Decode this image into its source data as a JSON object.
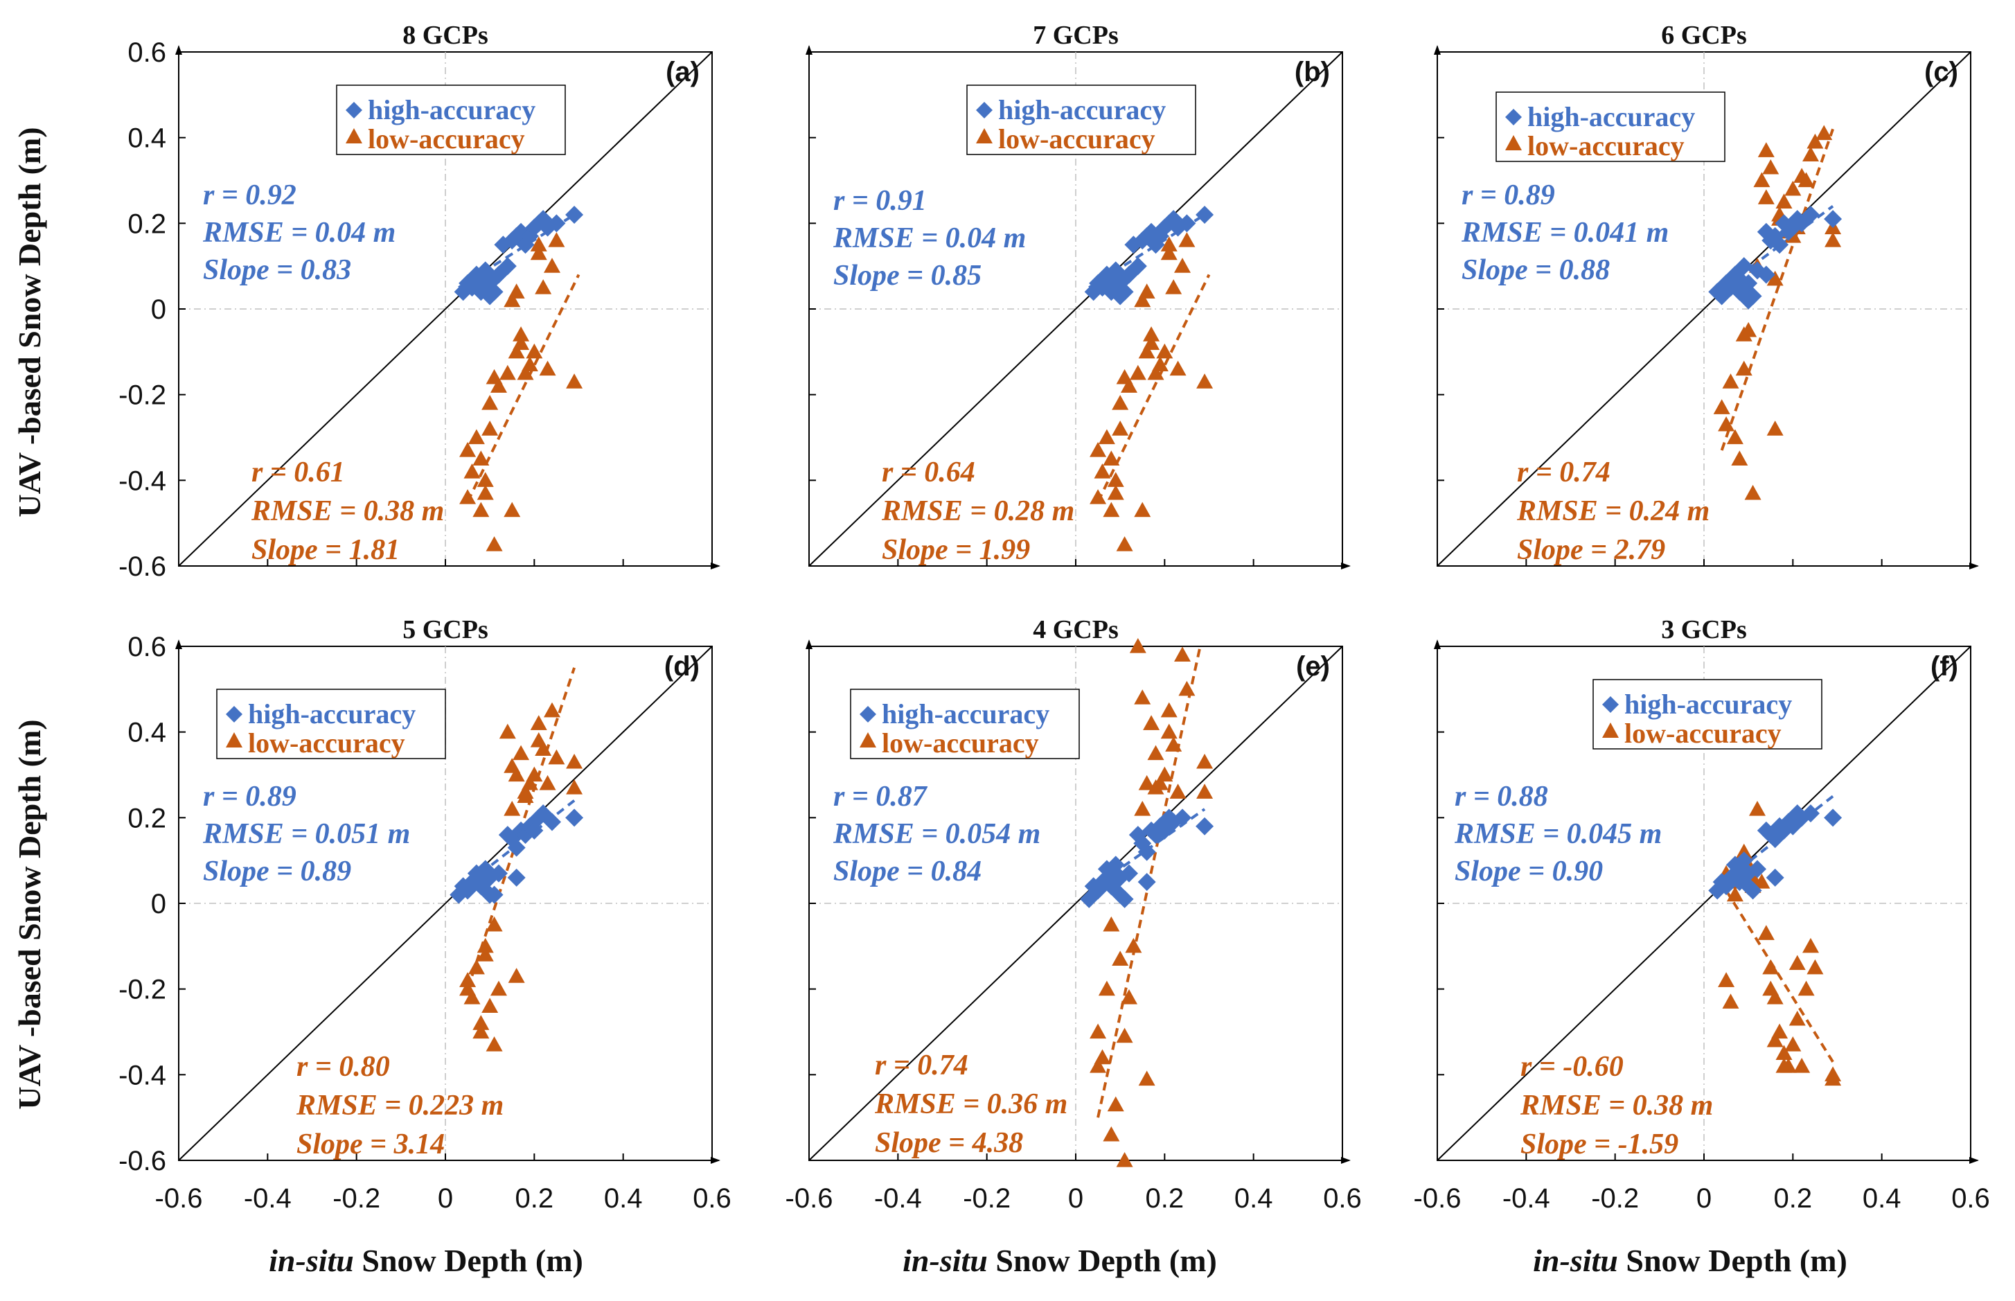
{
  "figure": {
    "ylabel": "UAV -based  Snow Depth (m)",
    "xlabel_italic": "in-situ",
    "xlabel_rest": " Snow Depth (m)",
    "legend": {
      "high": "high-accuracy",
      "low": "low-accuracy"
    },
    "colors": {
      "high": "#4472c4",
      "low": "#c55a11",
      "axis": "#000000",
      "grid": "#bfbfbf"
    },
    "ticks": [
      "-0.6",
      "-0.4",
      "-0.2",
      "0",
      "0.2",
      "0.4",
      "0.6"
    ]
  },
  "chart_data": [
    {
      "type": "scatter",
      "id": "a",
      "title": "8 GCPs",
      "panel_label": "(a)",
      "xlim": [
        -0.6,
        0.6
      ],
      "ylim": [
        -0.6,
        0.6
      ],
      "grid": "zero-lines dash-dot",
      "high": {
        "stats": [
          "r = 0.92",
          "RMSE = 0.04 m",
          "Slope = 0.83"
        ],
        "x": [
          0.04,
          0.05,
          0.06,
          0.07,
          0.08,
          0.09,
          0.1,
          0.11,
          0.12,
          0.14,
          0.15,
          0.16,
          0.17,
          0.18,
          0.19,
          0.2,
          0.21,
          0.22,
          0.23,
          0.25,
          0.29,
          0.1,
          0.08,
          0.13
        ],
        "y": [
          0.04,
          0.06,
          0.05,
          0.08,
          0.04,
          0.09,
          0.06,
          0.04,
          0.08,
          0.1,
          0.16,
          0.17,
          0.18,
          0.15,
          0.17,
          0.19,
          0.2,
          0.21,
          0.19,
          0.2,
          0.22,
          0.03,
          0.07,
          0.15
        ],
        "fit": [
          [
            0.03,
            0.05
          ],
          [
            0.29,
            0.22
          ]
        ]
      },
      "low": {
        "stats": [
          "r = 0.61",
          "RMSE = 0.38 m",
          "Slope = 1.81"
        ],
        "x": [
          0.05,
          0.06,
          0.05,
          0.07,
          0.08,
          0.09,
          0.1,
          0.11,
          0.12,
          0.14,
          0.15,
          0.16,
          0.17,
          0.18,
          0.19,
          0.2,
          0.21,
          0.22,
          0.24,
          0.25,
          0.16,
          0.11,
          0.08,
          0.1,
          0.29,
          0.23,
          0.17,
          0.21,
          0.15,
          0.09
        ],
        "y": [
          -0.44,
          -0.38,
          -0.33,
          -0.3,
          -0.47,
          -0.43,
          -0.28,
          -0.55,
          -0.18,
          -0.15,
          -0.47,
          -0.1,
          -0.06,
          -0.15,
          -0.13,
          -0.1,
          0.13,
          0.05,
          0.1,
          0.16,
          0.04,
          -0.16,
          -0.35,
          -0.22,
          -0.17,
          -0.14,
          -0.08,
          0.15,
          0.02,
          -0.4
        ],
        "fit": [
          [
            0.05,
            -0.45
          ],
          [
            0.3,
            0.08
          ]
        ]
      }
    },
    {
      "type": "scatter",
      "id": "b",
      "title": "7 GCPs",
      "panel_label": "(b)",
      "xlim": [
        -0.6,
        0.6
      ],
      "ylim": [
        -0.6,
        0.6
      ],
      "grid": "zero-lines dash-dot",
      "high": {
        "stats": [
          "r = 0.91",
          "RMSE = 0.04 m",
          "Slope = 0.85"
        ],
        "x": [
          0.04,
          0.05,
          0.06,
          0.07,
          0.08,
          0.09,
          0.1,
          0.11,
          0.12,
          0.14,
          0.15,
          0.16,
          0.17,
          0.18,
          0.19,
          0.2,
          0.21,
          0.22,
          0.23,
          0.25,
          0.29,
          0.1,
          0.08,
          0.13
        ],
        "y": [
          0.04,
          0.06,
          0.05,
          0.08,
          0.04,
          0.09,
          0.06,
          0.04,
          0.08,
          0.1,
          0.16,
          0.17,
          0.18,
          0.15,
          0.17,
          0.19,
          0.2,
          0.21,
          0.19,
          0.2,
          0.22,
          0.03,
          0.07,
          0.15
        ],
        "fit": [
          [
            0.03,
            0.05
          ],
          [
            0.29,
            0.22
          ]
        ]
      },
      "low": {
        "stats": [
          "r = 0.64",
          "RMSE = 0.28 m",
          "Slope = 1.99"
        ],
        "x": [
          0.05,
          0.06,
          0.05,
          0.07,
          0.08,
          0.09,
          0.1,
          0.11,
          0.12,
          0.14,
          0.15,
          0.16,
          0.17,
          0.18,
          0.19,
          0.2,
          0.21,
          0.22,
          0.24,
          0.25,
          0.16,
          0.11,
          0.08,
          0.1,
          0.29,
          0.23,
          0.17,
          0.21,
          0.15,
          0.09
        ],
        "y": [
          -0.44,
          -0.38,
          -0.33,
          -0.3,
          -0.47,
          -0.43,
          -0.28,
          -0.55,
          -0.18,
          -0.15,
          -0.47,
          -0.1,
          -0.06,
          -0.15,
          -0.13,
          -0.1,
          0.13,
          0.05,
          0.1,
          0.16,
          0.04,
          -0.16,
          -0.35,
          -0.22,
          -0.17,
          -0.14,
          -0.08,
          0.15,
          0.02,
          -0.4
        ],
        "fit": [
          [
            0.05,
            -0.45
          ],
          [
            0.3,
            0.08
          ]
        ]
      }
    },
    {
      "type": "scatter",
      "id": "c",
      "title": "6 GCPs",
      "panel_label": "(c)",
      "xlim": [
        -0.6,
        0.6
      ],
      "ylim": [
        -0.6,
        0.6
      ],
      "grid": "zero-lines dash-dot",
      "high": {
        "stats": [
          "r = 0.89",
          "RMSE = 0.041 m",
          "Slope = 0.88"
        ],
        "x": [
          0.03,
          0.04,
          0.05,
          0.06,
          0.07,
          0.08,
          0.09,
          0.1,
          0.11,
          0.12,
          0.14,
          0.15,
          0.16,
          0.17,
          0.18,
          0.19,
          0.2,
          0.21,
          0.22,
          0.24,
          0.29,
          0.1,
          0.08,
          0.14
        ],
        "y": [
          0.04,
          0.03,
          0.06,
          0.05,
          0.08,
          0.04,
          0.1,
          0.06,
          0.03,
          0.09,
          0.18,
          0.16,
          0.17,
          0.15,
          0.2,
          0.18,
          0.19,
          0.21,
          0.2,
          0.22,
          0.21,
          0.02,
          0.07,
          0.08
        ],
        "fit": [
          [
            0.03,
            0.04
          ],
          [
            0.29,
            0.24
          ]
        ]
      },
      "low": {
        "stats": [
          "r = 0.74",
          "RMSE = 0.24 m",
          "Slope = 2.79"
        ],
        "x": [
          0.04,
          0.05,
          0.06,
          0.07,
          0.08,
          0.09,
          0.1,
          0.11,
          0.12,
          0.13,
          0.14,
          0.15,
          0.16,
          0.17,
          0.18,
          0.19,
          0.2,
          0.21,
          0.22,
          0.24,
          0.25,
          0.27,
          0.29,
          0.29,
          0.23,
          0.14,
          0.16,
          0.09,
          0.17,
          0.2
        ],
        "y": [
          -0.23,
          -0.27,
          -0.17,
          -0.3,
          -0.35,
          -0.06,
          -0.05,
          -0.43,
          0.1,
          0.3,
          0.26,
          0.33,
          -0.28,
          0.21,
          0.25,
          0.18,
          0.17,
          0.19,
          0.31,
          0.36,
          0.39,
          0.41,
          0.16,
          0.19,
          0.3,
          0.37,
          0.07,
          -0.14,
          0.22,
          0.28
        ],
        "fit": [
          [
            0.04,
            -0.33
          ],
          [
            0.29,
            0.42
          ]
        ]
      }
    },
    {
      "type": "scatter",
      "id": "d",
      "title": "5 GCPs",
      "panel_label": "(d)",
      "xlim": [
        -0.6,
        0.6
      ],
      "ylim": [
        -0.6,
        0.6
      ],
      "grid": "zero-lines dash-dot",
      "high": {
        "stats": [
          "r = 0.89",
          "RMSE = 0.051 m",
          "Slope = 0.89"
        ],
        "x": [
          0.03,
          0.04,
          0.05,
          0.06,
          0.07,
          0.08,
          0.09,
          0.1,
          0.11,
          0.12,
          0.14,
          0.15,
          0.16,
          0.17,
          0.18,
          0.19,
          0.2,
          0.21,
          0.22,
          0.24,
          0.29,
          0.1,
          0.08,
          0.16
        ],
        "y": [
          0.02,
          0.04,
          0.03,
          0.05,
          0.07,
          0.04,
          0.08,
          0.06,
          0.02,
          0.07,
          0.16,
          0.15,
          0.13,
          0.17,
          0.16,
          0.18,
          0.17,
          0.2,
          0.21,
          0.19,
          0.2,
          0.02,
          0.07,
          0.06
        ],
        "fit": [
          [
            0.03,
            0.03
          ],
          [
            0.29,
            0.24
          ]
        ]
      },
      "low": {
        "stats": [
          "r = 0.80",
          "RMSE = 0.223 m",
          "Slope = 3.14"
        ],
        "x": [
          0.05,
          0.06,
          0.05,
          0.07,
          0.08,
          0.09,
          0.1,
          0.11,
          0.12,
          0.14,
          0.15,
          0.16,
          0.17,
          0.18,
          0.19,
          0.2,
          0.21,
          0.22,
          0.24,
          0.25,
          0.16,
          0.11,
          0.08,
          0.29,
          0.23,
          0.15,
          0.21,
          0.18,
          0.29,
          0.09
        ],
        "y": [
          -0.18,
          -0.22,
          -0.2,
          -0.15,
          -0.28,
          -0.1,
          -0.24,
          -0.33,
          -0.2,
          0.4,
          0.32,
          -0.17,
          0.35,
          0.26,
          0.28,
          0.3,
          0.42,
          0.36,
          0.45,
          0.34,
          0.3,
          -0.05,
          -0.3,
          0.33,
          0.28,
          0.22,
          0.38,
          0.25,
          0.27,
          -0.12
        ],
        "fit": [
          [
            0.05,
            -0.2
          ],
          [
            0.29,
            0.55
          ]
        ]
      }
    },
    {
      "type": "scatter",
      "id": "e",
      "title": "4 GCPs",
      "panel_label": "(e)",
      "xlim": [
        -0.6,
        0.6
      ],
      "ylim": [
        -0.6,
        0.6
      ],
      "grid": "zero-lines dash-dot",
      "high": {
        "stats": [
          "r = 0.87",
          "RMSE = 0.054 m",
          "Slope = 0.84"
        ],
        "x": [
          0.03,
          0.04,
          0.05,
          0.06,
          0.07,
          0.08,
          0.09,
          0.1,
          0.11,
          0.12,
          0.14,
          0.15,
          0.16,
          0.17,
          0.18,
          0.19,
          0.2,
          0.21,
          0.22,
          0.24,
          0.29,
          0.1,
          0.08,
          0.16
        ],
        "y": [
          0.01,
          0.04,
          0.03,
          0.05,
          0.08,
          0.04,
          0.09,
          0.06,
          0.01,
          0.07,
          0.16,
          0.14,
          0.12,
          0.17,
          0.16,
          0.18,
          0.17,
          0.2,
          0.19,
          0.2,
          0.18,
          0.02,
          0.07,
          0.05
        ],
        "fit": [
          [
            0.03,
            0.03
          ],
          [
            0.29,
            0.22
          ]
        ]
      },
      "low": {
        "stats": [
          "r = 0.74",
          "RMSE = 0.36 m",
          "Slope = 4.38"
        ],
        "x": [
          0.05,
          0.06,
          0.05,
          0.07,
          0.08,
          0.09,
          0.1,
          0.11,
          0.12,
          0.14,
          0.15,
          0.16,
          0.17,
          0.18,
          0.19,
          0.2,
          0.21,
          0.22,
          0.24,
          0.25,
          0.16,
          0.11,
          0.08,
          0.29,
          0.23,
          0.15,
          0.21,
          0.18,
          0.29,
          0.13
        ],
        "y": [
          -0.3,
          -0.36,
          -0.38,
          -0.2,
          -0.54,
          -0.47,
          -0.13,
          -0.6,
          -0.22,
          0.6,
          0.48,
          -0.41,
          0.42,
          0.35,
          0.28,
          0.3,
          0.45,
          0.37,
          0.58,
          0.5,
          0.28,
          -0.31,
          -0.05,
          0.33,
          0.26,
          0.22,
          0.4,
          0.27,
          0.26,
          -0.1
        ],
        "fit": [
          [
            0.05,
            -0.5
          ],
          [
            0.28,
            0.6
          ]
        ]
      }
    },
    {
      "type": "scatter",
      "id": "f",
      "title": "3 GCPs",
      "panel_label": "(f)",
      "xlim": [
        -0.6,
        0.6
      ],
      "ylim": [
        -0.6,
        0.6
      ],
      "grid": "zero-lines dash-dot",
      "high": {
        "stats": [
          "r = 0.88",
          "RMSE = 0.045 m",
          "Slope = 0.90"
        ],
        "x": [
          0.03,
          0.04,
          0.05,
          0.06,
          0.07,
          0.08,
          0.09,
          0.1,
          0.11,
          0.12,
          0.14,
          0.15,
          0.16,
          0.17,
          0.18,
          0.19,
          0.2,
          0.21,
          0.22,
          0.24,
          0.29,
          0.1,
          0.08,
          0.16
        ],
        "y": [
          0.03,
          0.05,
          0.04,
          0.06,
          0.09,
          0.05,
          0.1,
          0.07,
          0.03,
          0.08,
          0.17,
          0.16,
          0.15,
          0.18,
          0.17,
          0.19,
          0.18,
          0.21,
          0.2,
          0.21,
          0.2,
          0.04,
          0.08,
          0.06
        ],
        "fit": [
          [
            0.03,
            0.04
          ],
          [
            0.29,
            0.25
          ]
        ]
      },
      "low": {
        "stats": [
          "r = -0.60",
          "RMSE = 0.38 m",
          "Slope = -1.59"
        ],
        "x": [
          0.05,
          0.06,
          0.05,
          0.07,
          0.08,
          0.09,
          0.1,
          0.11,
          0.12,
          0.14,
          0.15,
          0.16,
          0.17,
          0.18,
          0.19,
          0.2,
          0.21,
          0.22,
          0.24,
          0.25,
          0.16,
          0.11,
          0.08,
          0.29,
          0.23,
          0.15,
          0.21,
          0.18,
          0.29,
          0.13
        ],
        "y": [
          -0.18,
          -0.23,
          0.07,
          0.02,
          0.05,
          0.12,
          0.09,
          0.06,
          0.22,
          -0.07,
          -0.2,
          -0.22,
          -0.3,
          -0.38,
          -0.38,
          -0.33,
          -0.14,
          -0.38,
          -0.1,
          -0.15,
          -0.32,
          0.04,
          0.1,
          -0.4,
          -0.2,
          -0.15,
          -0.27,
          -0.35,
          -0.41,
          0.05
        ],
        "fit": [
          [
            0.05,
            0.03
          ],
          [
            0.29,
            -0.37
          ]
        ]
      }
    }
  ]
}
